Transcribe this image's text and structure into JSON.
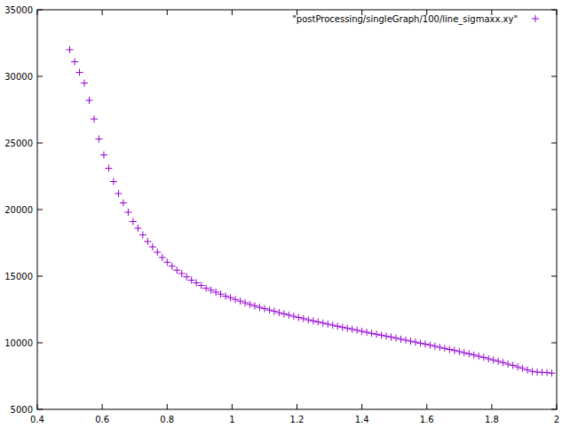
{
  "chart_data": {
    "type": "scatter",
    "legend": "top-right",
    "grid": false,
    "xlim": [
      0.4,
      2
    ],
    "xticks": [
      0.4,
      0.6,
      0.8,
      1,
      1.2,
      1.4,
      1.6,
      1.8,
      2
    ],
    "ylim": [
      5000,
      35000
    ],
    "yticks": [
      5000,
      10000,
      15000,
      20000,
      25000,
      30000,
      35000
    ],
    "x": [
      0.5,
      0.515,
      0.53,
      0.545,
      0.56,
      0.575,
      0.59,
      0.605,
      0.62,
      0.635,
      0.65,
      0.665,
      0.68,
      0.695,
      0.71,
      0.725,
      0.74,
      0.755,
      0.77,
      0.785,
      0.8,
      0.815,
      0.83,
      0.845,
      0.86,
      0.875,
      0.89,
      0.905,
      0.92,
      0.935,
      0.95,
      0.965,
      0.98,
      0.995,
      1.01,
      1.025,
      1.04,
      1.055,
      1.07,
      1.085,
      1.1,
      1.115,
      1.13,
      1.145,
      1.16,
      1.175,
      1.19,
      1.205,
      1.22,
      1.235,
      1.25,
      1.265,
      1.28,
      1.295,
      1.31,
      1.325,
      1.34,
      1.355,
      1.37,
      1.385,
      1.4,
      1.415,
      1.43,
      1.445,
      1.46,
      1.475,
      1.49,
      1.505,
      1.52,
      1.535,
      1.55,
      1.565,
      1.58,
      1.595,
      1.61,
      1.625,
      1.64,
      1.655,
      1.67,
      1.685,
      1.7,
      1.715,
      1.73,
      1.745,
      1.76,
      1.775,
      1.79,
      1.805,
      1.82,
      1.835,
      1.85,
      1.865,
      1.88,
      1.895,
      1.91,
      1.925,
      1.94,
      1.955,
      1.97,
      1.985
    ],
    "series": [
      {
        "name": "\"postProcessing/singleGraph/100/line_sigmaxx.xy\"",
        "color": "#9400d3",
        "marker": "plus",
        "values": [
          32000,
          31100,
          30300,
          29500,
          28200,
          26800,
          25300,
          24100,
          23100,
          22100,
          21200,
          20500,
          19800,
          19100,
          18600,
          18100,
          17600,
          17200,
          16800,
          16400,
          16050,
          15750,
          15450,
          15200,
          14950,
          14700,
          14500,
          14300,
          14100,
          13950,
          13800,
          13650,
          13500,
          13380,
          13250,
          13130,
          13000,
          12880,
          12770,
          12660,
          12560,
          12460,
          12360,
          12260,
          12170,
          12080,
          11990,
          11900,
          11810,
          11720,
          11640,
          11560,
          11480,
          11400,
          11320,
          11240,
          11160,
          11090,
          11010,
          10940,
          10860,
          10790,
          10710,
          10640,
          10570,
          10490,
          10420,
          10350,
          10270,
          10200,
          10120,
          10050,
          9970,
          9900,
          9820,
          9740,
          9660,
          9580,
          9500,
          9420,
          9340,
          9250,
          9170,
          9080,
          8990,
          8900,
          8800,
          8710,
          8610,
          8510,
          8400,
          8300,
          8190,
          8080,
          7960,
          7850,
          7800,
          7780,
          7760,
          7720
        ]
      }
    ]
  }
}
